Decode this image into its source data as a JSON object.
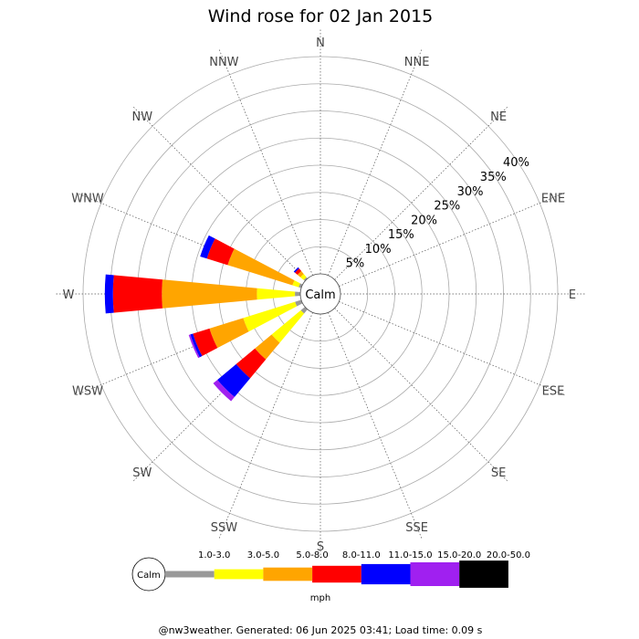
{
  "chart_data": {
    "type": "wind-rose",
    "title": "Wind rose for 02 Jan 2015",
    "directions": [
      "N",
      "NNE",
      "NE",
      "ENE",
      "E",
      "ESE",
      "SE",
      "SSE",
      "S",
      "SSW",
      "SW",
      "WSW",
      "W",
      "WNW",
      "NW",
      "NNW"
    ],
    "rings": [
      5,
      10,
      15,
      20,
      25,
      30,
      35,
      40
    ],
    "ring_labels": [
      "5%",
      "10%",
      "15%",
      "20%",
      "25%",
      "30%",
      "35%",
      "40%"
    ],
    "rmax": 40,
    "calm_label": "Calm",
    "speed_bins": [
      {
        "label": "1.0-3.0",
        "color": "#999999"
      },
      {
        "label": "3.0-5.0",
        "color": "#ffff00"
      },
      {
        "label": "5.0-8.0",
        "color": "#ffa500"
      },
      {
        "label": "8.0-11.0",
        "color": "#ff0000"
      },
      {
        "label": "11.0-15.0",
        "color": "#0000ff"
      },
      {
        "label": "15.0-20.0",
        "color": "#a020f0"
      },
      {
        "label": "20.0-50.0",
        "color": "#000000"
      }
    ],
    "units": "mph",
    "series": [
      {
        "direction": "NW",
        "values": [
          0.3,
          0.8,
          0.7,
          0.6,
          0.3,
          0,
          0
        ]
      },
      {
        "direction": "WNW",
        "values": [
          0.5,
          1.2,
          12.5,
          4.0,
          1.3,
          0,
          0
        ]
      },
      {
        "direction": "W",
        "values": [
          1.0,
          7.0,
          17.5,
          9.0,
          1.5,
          0,
          0
        ]
      },
      {
        "direction": "WSW",
        "values": [
          1.2,
          10.0,
          6.5,
          3.2,
          0.5,
          0.3,
          0
        ]
      },
      {
        "direction": "SW",
        "values": [
          1.0,
          7.0,
          4.0,
          4.5,
          4.5,
          1.0,
          0
        ]
      }
    ]
  },
  "footer": "@nw3weather. Generated: 06 Jun 2025 03:41; Load time: 0.09 s"
}
